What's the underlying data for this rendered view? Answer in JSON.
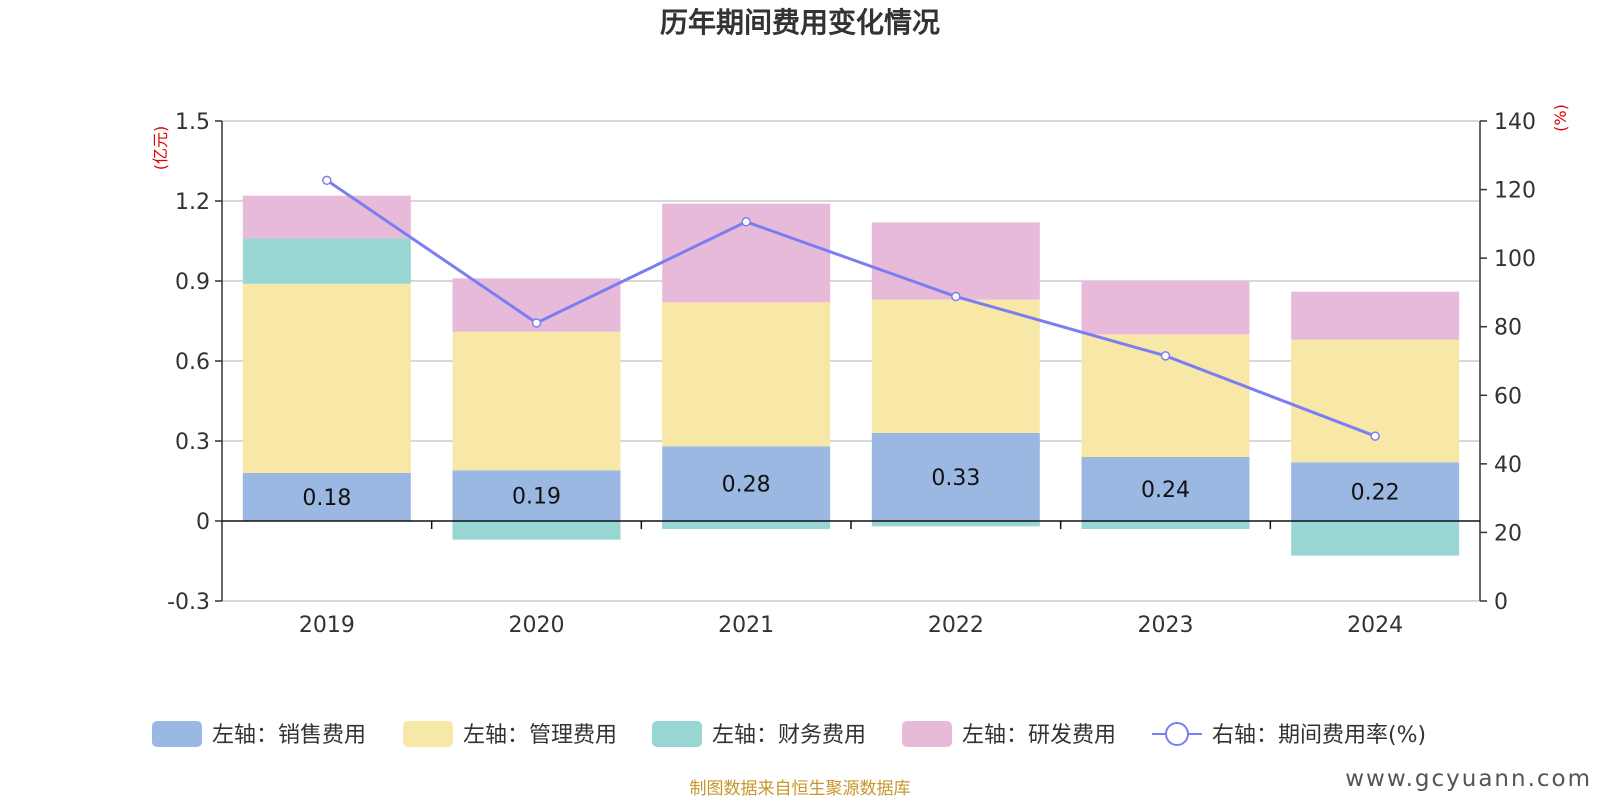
{
  "chart_data": {
    "type": "bar",
    "title": "历年期间费用变化情况",
    "categories": [
      "2019",
      "2020",
      "2021",
      "2022",
      "2023",
      "2024"
    ],
    "left_axis": {
      "unit_label": "(亿元)",
      "ylim": [
        -0.3,
        1.5
      ],
      "ticks": [
        -0.3,
        0,
        0.3,
        0.6,
        0.9,
        1.2,
        1.5
      ],
      "tick_labels": [
        "-0.3",
        "0",
        "0.3",
        "0.6",
        "0.9",
        "1.2",
        "1.5"
      ]
    },
    "right_axis": {
      "unit_label": "(%)",
      "ylim": [
        0,
        140
      ],
      "ticks": [
        0,
        20,
        40,
        60,
        80,
        100,
        120,
        140
      ],
      "tick_labels": [
        "0",
        "20",
        "40",
        "60",
        "80",
        "100",
        "120",
        "140"
      ]
    },
    "grid": true,
    "legend_position": "bottom",
    "series": [
      {
        "name": "左轴：销售费用",
        "type": "bar",
        "axis": "left",
        "color": "#9bb8e2",
        "values": [
          0.18,
          0.19,
          0.28,
          0.33,
          0.24,
          0.22
        ],
        "labels": [
          "0.18",
          "0.19",
          "0.28",
          "0.33",
          "0.24",
          "0.22"
        ]
      },
      {
        "name": "左轴：管理费用",
        "type": "bar",
        "axis": "left",
        "color": "#f8e8a8",
        "values": [
          0.71,
          0.52,
          0.54,
          0.5,
          0.46,
          0.46
        ]
      },
      {
        "name": "左轴：财务费用",
        "type": "bar",
        "axis": "left",
        "color": "#98d6d4",
        "values": [
          0.17,
          -0.07,
          -0.03,
          -0.02,
          -0.03,
          -0.13
        ]
      },
      {
        "name": "左轴：研发费用",
        "type": "bar",
        "axis": "left",
        "color": "#e8bada",
        "values": [
          0.16,
          0.2,
          0.37,
          0.29,
          0.2,
          0.18
        ]
      },
      {
        "name": "右轴：期间费用率(%)",
        "type": "line",
        "axis": "right",
        "color": "#7b7ef0",
        "values": [
          122.7,
          81.1,
          110.6,
          88.8,
          71.5,
          48.1
        ]
      }
    ]
  },
  "footer": {
    "source": "制图数据来自恒生聚源数据库",
    "watermark": "www.gcyuann.com"
  }
}
